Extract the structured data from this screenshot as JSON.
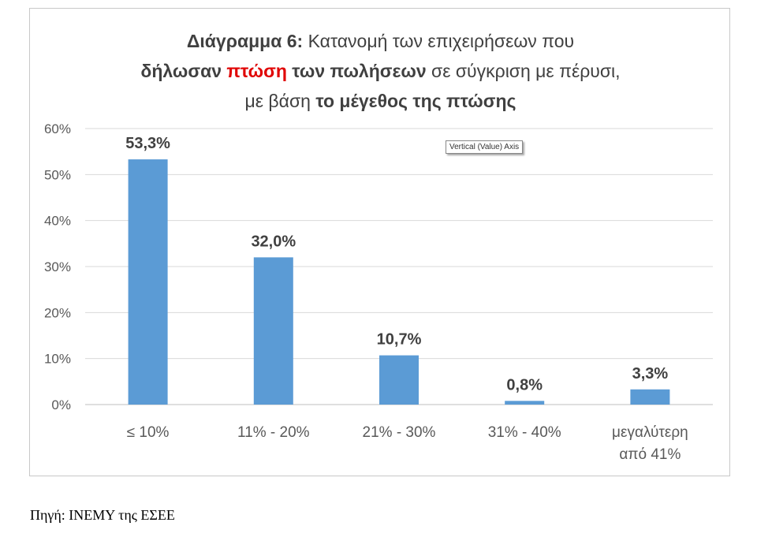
{
  "title": {
    "line1_bold": "Διάγραμμα 6:",
    "line1_rest": " Κατανομή των επιχειρήσεων που",
    "line2_bold1": "δήλωσαν ",
    "line2_red": "πτώση",
    "line2_bold2": " των πωλήσεων",
    "line2_rest": " σε σύγκριση με πέρυσι,",
    "line3_rest": "με βάση ",
    "line3_bold": "το μέγεθος της πτώσης"
  },
  "tooltip": "Vertical (Value) Axis",
  "source": "Πηγή: ΙΝΕΜΥ της ΕΣΕΕ",
  "chart_data": {
    "type": "bar",
    "categories": [
      [
        "≤ 10%"
      ],
      [
        "11% - 20%"
      ],
      [
        "21% - 30%"
      ],
      [
        "31% - 40%"
      ],
      [
        "μεγαλύτερη",
        "από 41%"
      ]
    ],
    "values": [
      53.3,
      32.0,
      10.7,
      0.8,
      3.3
    ],
    "data_labels": [
      "53,3%",
      "32,0%",
      "10,7%",
      "0,8%",
      "3,3%"
    ],
    "yticks": [
      "0%",
      "10%",
      "20%",
      "30%",
      "40%",
      "50%",
      "60%"
    ],
    "ylim": [
      0,
      60
    ],
    "grid": true,
    "bar_color": "#5b9bd5",
    "red_accent": "#e00000"
  }
}
